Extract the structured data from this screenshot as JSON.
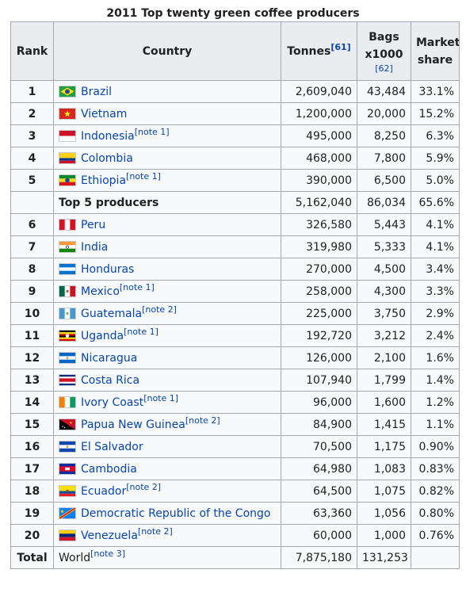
{
  "title": "2011 Top twenty green coffee producers",
  "headers": {
    "rank": "Rank",
    "country": "Country",
    "tonnes": "Tonnes",
    "tonnes_ref": "[61]",
    "bags_line1": "Bags",
    "bags_line2": "x1000",
    "bags_ref": "[62]",
    "share_line1": "Market",
    "share_line2": "share"
  },
  "rows_top": [
    {
      "rank": "1",
      "country": "Brazil",
      "note": "",
      "flag": "brazil-flag-icon",
      "tonnes": "2,609,040",
      "bags": "43,484",
      "share": "33.1%"
    },
    {
      "rank": "2",
      "country": "Vietnam",
      "note": "",
      "flag": "vietnam-flag-icon",
      "tonnes": "1,200,000",
      "bags": "20,000",
      "share": "15.2%"
    },
    {
      "rank": "3",
      "country": "Indonesia",
      "note": "[note 1]",
      "flag": "indonesia-flag-icon",
      "tonnes": "495,000",
      "bags": "8,250",
      "share": "6.3%"
    },
    {
      "rank": "4",
      "country": "Colombia",
      "note": "",
      "flag": "colombia-flag-icon",
      "tonnes": "468,000",
      "bags": "7,800",
      "share": "5.9%"
    },
    {
      "rank": "5",
      "country": "Ethiopia",
      "note": "[note 1]",
      "flag": "ethiopia-flag-icon",
      "tonnes": "390,000",
      "bags": "6,500",
      "share": "5.0%"
    }
  ],
  "top5": {
    "label": "Top 5 producers",
    "tonnes": "5,162,040",
    "bags": "86,034",
    "share": "65.6%"
  },
  "rows_rest": [
    {
      "rank": "6",
      "country": "Peru",
      "note": "",
      "flag": "peru-flag-icon",
      "tonnes": "326,580",
      "bags": "5,443",
      "share": "4.1%"
    },
    {
      "rank": "7",
      "country": "India",
      "note": "",
      "flag": "india-flag-icon",
      "tonnes": "319,980",
      "bags": "5,333",
      "share": "4.1%"
    },
    {
      "rank": "8",
      "country": "Honduras",
      "note": "",
      "flag": "honduras-flag-icon",
      "tonnes": "270,000",
      "bags": "4,500",
      "share": "3.4%"
    },
    {
      "rank": "9",
      "country": "Mexico",
      "note": "[note 1]",
      "flag": "mexico-flag-icon",
      "tonnes": "258,000",
      "bags": "4,300",
      "share": "3.3%"
    },
    {
      "rank": "10",
      "country": "Guatemala",
      "note": "[note 2]",
      "flag": "guatemala-flag-icon",
      "tonnes": "225,000",
      "bags": "3,750",
      "share": "2.9%"
    },
    {
      "rank": "11",
      "country": "Uganda",
      "note": "[note 1]",
      "flag": "uganda-flag-icon",
      "tonnes": "192,720",
      "bags": "3,212",
      "share": "2.4%"
    },
    {
      "rank": "12",
      "country": "Nicaragua",
      "note": "",
      "flag": "nicaragua-flag-icon",
      "tonnes": "126,000",
      "bags": "2,100",
      "share": "1.6%"
    },
    {
      "rank": "13",
      "country": "Costa Rica",
      "note": "",
      "flag": "costa-rica-flag-icon",
      "tonnes": "107,940",
      "bags": "1,799",
      "share": "1.4%"
    },
    {
      "rank": "14",
      "country": "Ivory Coast",
      "note": "[note 1]",
      "flag": "ivory-coast-flag-icon",
      "tonnes": "96,000",
      "bags": "1,600",
      "share": "1.2%"
    },
    {
      "rank": "15",
      "country": "Papua New Guinea",
      "note": "[note 2]",
      "flag": "papua-new-guinea-flag-icon",
      "tonnes": "84,900",
      "bags": "1,415",
      "share": "1.1%"
    },
    {
      "rank": "16",
      "country": "El Salvador",
      "note": "",
      "flag": "el-salvador-flag-icon",
      "tonnes": "70,500",
      "bags": "1,175",
      "share": "0.90%"
    },
    {
      "rank": "17",
      "country": "Cambodia",
      "note": "",
      "flag": "cambodia-flag-icon",
      "tonnes": "64,980",
      "bags": "1,083",
      "share": "0.83%"
    },
    {
      "rank": "18",
      "country": "Ecuador",
      "note": "[note 2]",
      "flag": "ecuador-flag-icon",
      "tonnes": "64,500",
      "bags": "1,075",
      "share": "0.82%"
    },
    {
      "rank": "19",
      "country": "Democratic Republic of the Congo",
      "note": "",
      "flag": "dr-congo-flag-icon",
      "tonnes": "63,360",
      "bags": "1,056",
      "share": "0.80%"
    },
    {
      "rank": "20",
      "country": "Venezuela",
      "note": "[note 2]",
      "flag": "venezuela-flag-icon",
      "tonnes": "60,000",
      "bags": "1,000",
      "share": "0.76%"
    }
  ],
  "total": {
    "label": "Total",
    "country": "World",
    "note": "[note 3]",
    "tonnes": "7,875,180",
    "bags": "131,253",
    "share": ""
  },
  "colors": {
    "link": "#0645ad",
    "header_bg": "#eaecf0",
    "cell_bg": "#f8f9fa",
    "border": "#a2a9b1"
  }
}
